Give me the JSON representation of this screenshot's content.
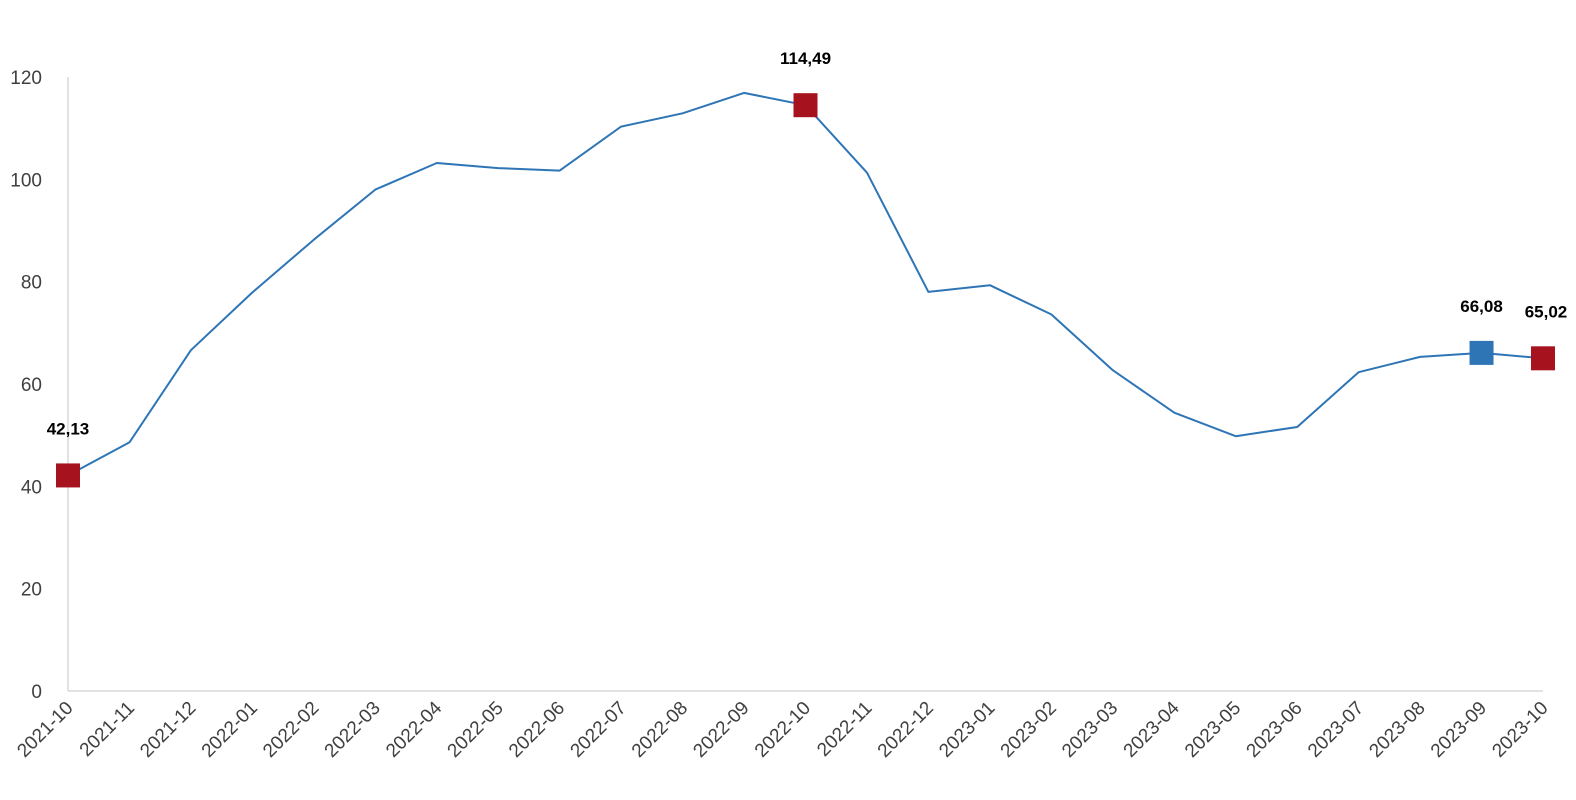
{
  "chart_data": {
    "type": "line",
    "title": "",
    "xlabel": "",
    "ylabel": "",
    "ylim": [
      0,
      120
    ],
    "yticks": [
      0,
      20,
      40,
      60,
      80,
      100,
      120
    ],
    "grid": false,
    "legend": "none",
    "categories": [
      "2021-10",
      "2021-11",
      "2021-12",
      "2022-01",
      "2022-02",
      "2022-03",
      "2022-04",
      "2022-05",
      "2022-06",
      "2022-07",
      "2022-08",
      "2022-09",
      "2022-10",
      "2022-11",
      "2022-12",
      "2023-01",
      "2023-02",
      "2023-03",
      "2023-04",
      "2023-05",
      "2023-06",
      "2023-07",
      "2023-08",
      "2023-09",
      "2023-10"
    ],
    "series": [
      {
        "values": [
          42.13,
          48.6,
          66.6,
          77.9,
          88.2,
          98.0,
          103.2,
          102.2,
          101.7,
          110.3,
          112.9,
          116.9,
          114.49,
          101.3,
          78.0,
          79.3,
          73.6,
          62.7,
          54.4,
          49.8,
          51.6,
          62.3,
          65.3,
          66.08,
          65.02
        ],
        "color": "#2e75b6"
      }
    ],
    "highlights": [
      {
        "category": "2021-10",
        "value": 42.13,
        "label": "42,13",
        "color": "#a6121d"
      },
      {
        "category": "2022-10",
        "value": 114.49,
        "label": "114,49",
        "color": "#a6121d"
      },
      {
        "category": "2023-09",
        "value": 66.08,
        "label": "66,08",
        "color": "#2e75b6"
      },
      {
        "category": "2023-10",
        "value": 65.02,
        "label": "65,02",
        "color": "#a6121d"
      }
    ],
    "axis_color": "#d9d9d9"
  }
}
